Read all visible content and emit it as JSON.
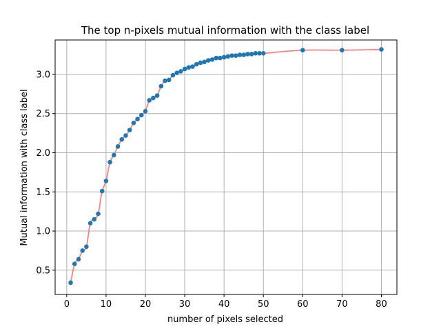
{
  "chart_data": {
    "type": "line",
    "title": "The top n-pixels mutual information with the class label",
    "xlabel": "number of pixels selected",
    "ylabel": "Mutual information with class label",
    "xlim": [
      -2.95,
      83.95
    ],
    "ylim": [
      0.19,
      3.44
    ],
    "xticks": [
      0,
      10,
      20,
      30,
      40,
      50,
      60,
      70,
      80
    ],
    "yticks": [
      0.5,
      1.0,
      1.5,
      2.0,
      2.5,
      3.0
    ],
    "xtick_labels": [
      "0",
      "10",
      "20",
      "30",
      "40",
      "50",
      "60",
      "70",
      "80"
    ],
    "ytick_labels": [
      "0.5",
      "1.0",
      "1.5",
      "2.0",
      "2.5",
      "3.0"
    ],
    "grid": true,
    "series": [
      {
        "line_color": "#ff7f7f",
        "marker_color": "#1f77b4",
        "x": [
          1,
          2,
          3,
          4,
          5,
          6,
          7,
          8,
          9,
          10,
          11,
          12,
          13,
          14,
          15,
          16,
          17,
          18,
          19,
          20,
          21,
          22,
          23,
          24,
          25,
          26,
          27,
          28,
          29,
          30,
          31,
          32,
          33,
          34,
          35,
          36,
          37,
          38,
          39,
          40,
          41,
          42,
          43,
          44,
          45,
          46,
          47,
          48,
          49,
          50,
          60,
          70,
          80
        ],
        "y": [
          0.34,
          0.58,
          0.64,
          0.75,
          0.8,
          1.1,
          1.15,
          1.22,
          1.51,
          1.64,
          1.88,
          1.97,
          2.08,
          2.17,
          2.22,
          2.29,
          2.38,
          2.43,
          2.48,
          2.53,
          2.67,
          2.7,
          2.73,
          2.85,
          2.92,
          2.93,
          2.99,
          3.02,
          3.04,
          3.07,
          3.09,
          3.1,
          3.13,
          3.15,
          3.16,
          3.18,
          3.19,
          3.21,
          3.21,
          3.22,
          3.23,
          3.24,
          3.24,
          3.25,
          3.25,
          3.26,
          3.26,
          3.27,
          3.27,
          3.27,
          3.31,
          3.31,
          3.32
        ]
      }
    ]
  }
}
